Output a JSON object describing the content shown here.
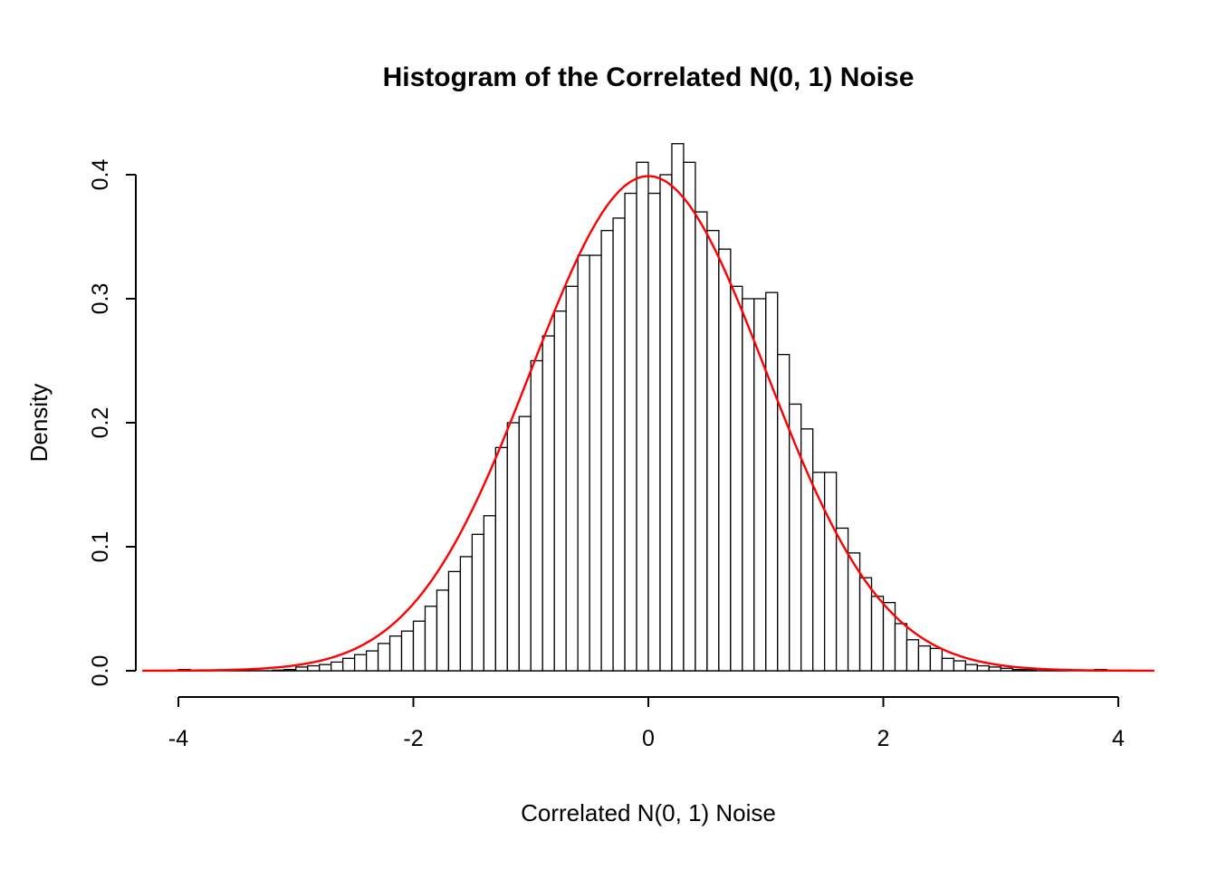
{
  "page": {
    "background": "#ffffff"
  },
  "chart_data": {
    "type": "bar",
    "subtype": "histogram",
    "title": "Histogram of the Correlated N(0, 1) Noise",
    "xlabel": "Correlated N(0, 1) Noise",
    "ylabel": "Density",
    "xlim": [
      -4.35,
      4.35
    ],
    "ylim": [
      0,
      0.43
    ],
    "grid": false,
    "legend": "none",
    "x_ticks": [
      -4,
      -2,
      0,
      2,
      4
    ],
    "x_tick_labels": [
      "-4",
      "-2",
      "0",
      "2",
      "4"
    ],
    "y_ticks": [
      0.0,
      0.1,
      0.2,
      0.3,
      0.4
    ],
    "y_tick_labels": [
      "0.0",
      "0.1",
      "0.2",
      "0.3",
      "0.4"
    ],
    "bin_start": -4.0,
    "bin_width": 0.1,
    "bar_fill": "#ffffff",
    "bar_stroke": "#000000",
    "densities": [
      0.001,
      0,
      0,
      0,
      0,
      0,
      0,
      0,
      0.0005,
      0.001,
      0.003,
      0.004,
      0.005,
      0.007,
      0.01,
      0.013,
      0.016,
      0.022,
      0.028,
      0.032,
      0.04,
      0.052,
      0.065,
      0.08,
      0.092,
      0.11,
      0.125,
      0.18,
      0.2,
      0.205,
      0.25,
      0.27,
      0.29,
      0.31,
      0.335,
      0.335,
      0.355,
      0.365,
      0.385,
      0.41,
      0.385,
      0.4,
      0.425,
      0.41,
      0.37,
      0.355,
      0.34,
      0.31,
      0.3,
      0.3,
      0.305,
      0.255,
      0.215,
      0.195,
      0.16,
      0.16,
      0.115,
      0.095,
      0.075,
      0.06,
      0.055,
      0.038,
      0.025,
      0.02,
      0.018,
      0.01,
      0.008,
      0.005,
      0.004,
      0.003,
      0.002,
      0.001,
      0.001,
      0,
      0,
      0,
      0,
      0,
      0.001,
      0
    ],
    "overlay_curve": {
      "name": "normal-density",
      "distribution": "normal_pdf",
      "mean": 0,
      "sd": 1,
      "color": "#ff0000",
      "x_range": [
        -4.3,
        4.3
      ]
    }
  }
}
